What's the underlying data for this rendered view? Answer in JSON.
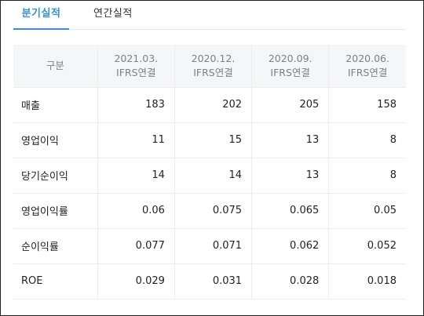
{
  "tabs": {
    "quarterly": "분기실적",
    "annual": "연간실적"
  },
  "table": {
    "header_label": "구분",
    "periods": [
      {
        "date": "2021.03.",
        "basis": "IFRS연결"
      },
      {
        "date": "2020.12.",
        "basis": "IFRS연결"
      },
      {
        "date": "2020.09.",
        "basis": "IFRS연결"
      },
      {
        "date": "2020.06.",
        "basis": "IFRS연결"
      }
    ],
    "rows": [
      {
        "label": "매출",
        "values": [
          "183",
          "202",
          "205",
          "158"
        ]
      },
      {
        "label": "영업이익",
        "values": [
          "11",
          "15",
          "13",
          "8"
        ]
      },
      {
        "label": "당기순이익",
        "values": [
          "14",
          "14",
          "13",
          "8"
        ]
      },
      {
        "label": "영업이익률",
        "values": [
          "0.06",
          "0.075",
          "0.065",
          "0.05"
        ]
      },
      {
        "label": "순이익률",
        "values": [
          "0.077",
          "0.071",
          "0.062",
          "0.052"
        ]
      },
      {
        "label": "ROE",
        "values": [
          "0.029",
          "0.031",
          "0.028",
          "0.018"
        ]
      }
    ]
  },
  "colors": {
    "accent": "#3a8fd1",
    "header_bg": "#f4f6f8",
    "header_text": "#7a8189",
    "border": "#ececec"
  }
}
